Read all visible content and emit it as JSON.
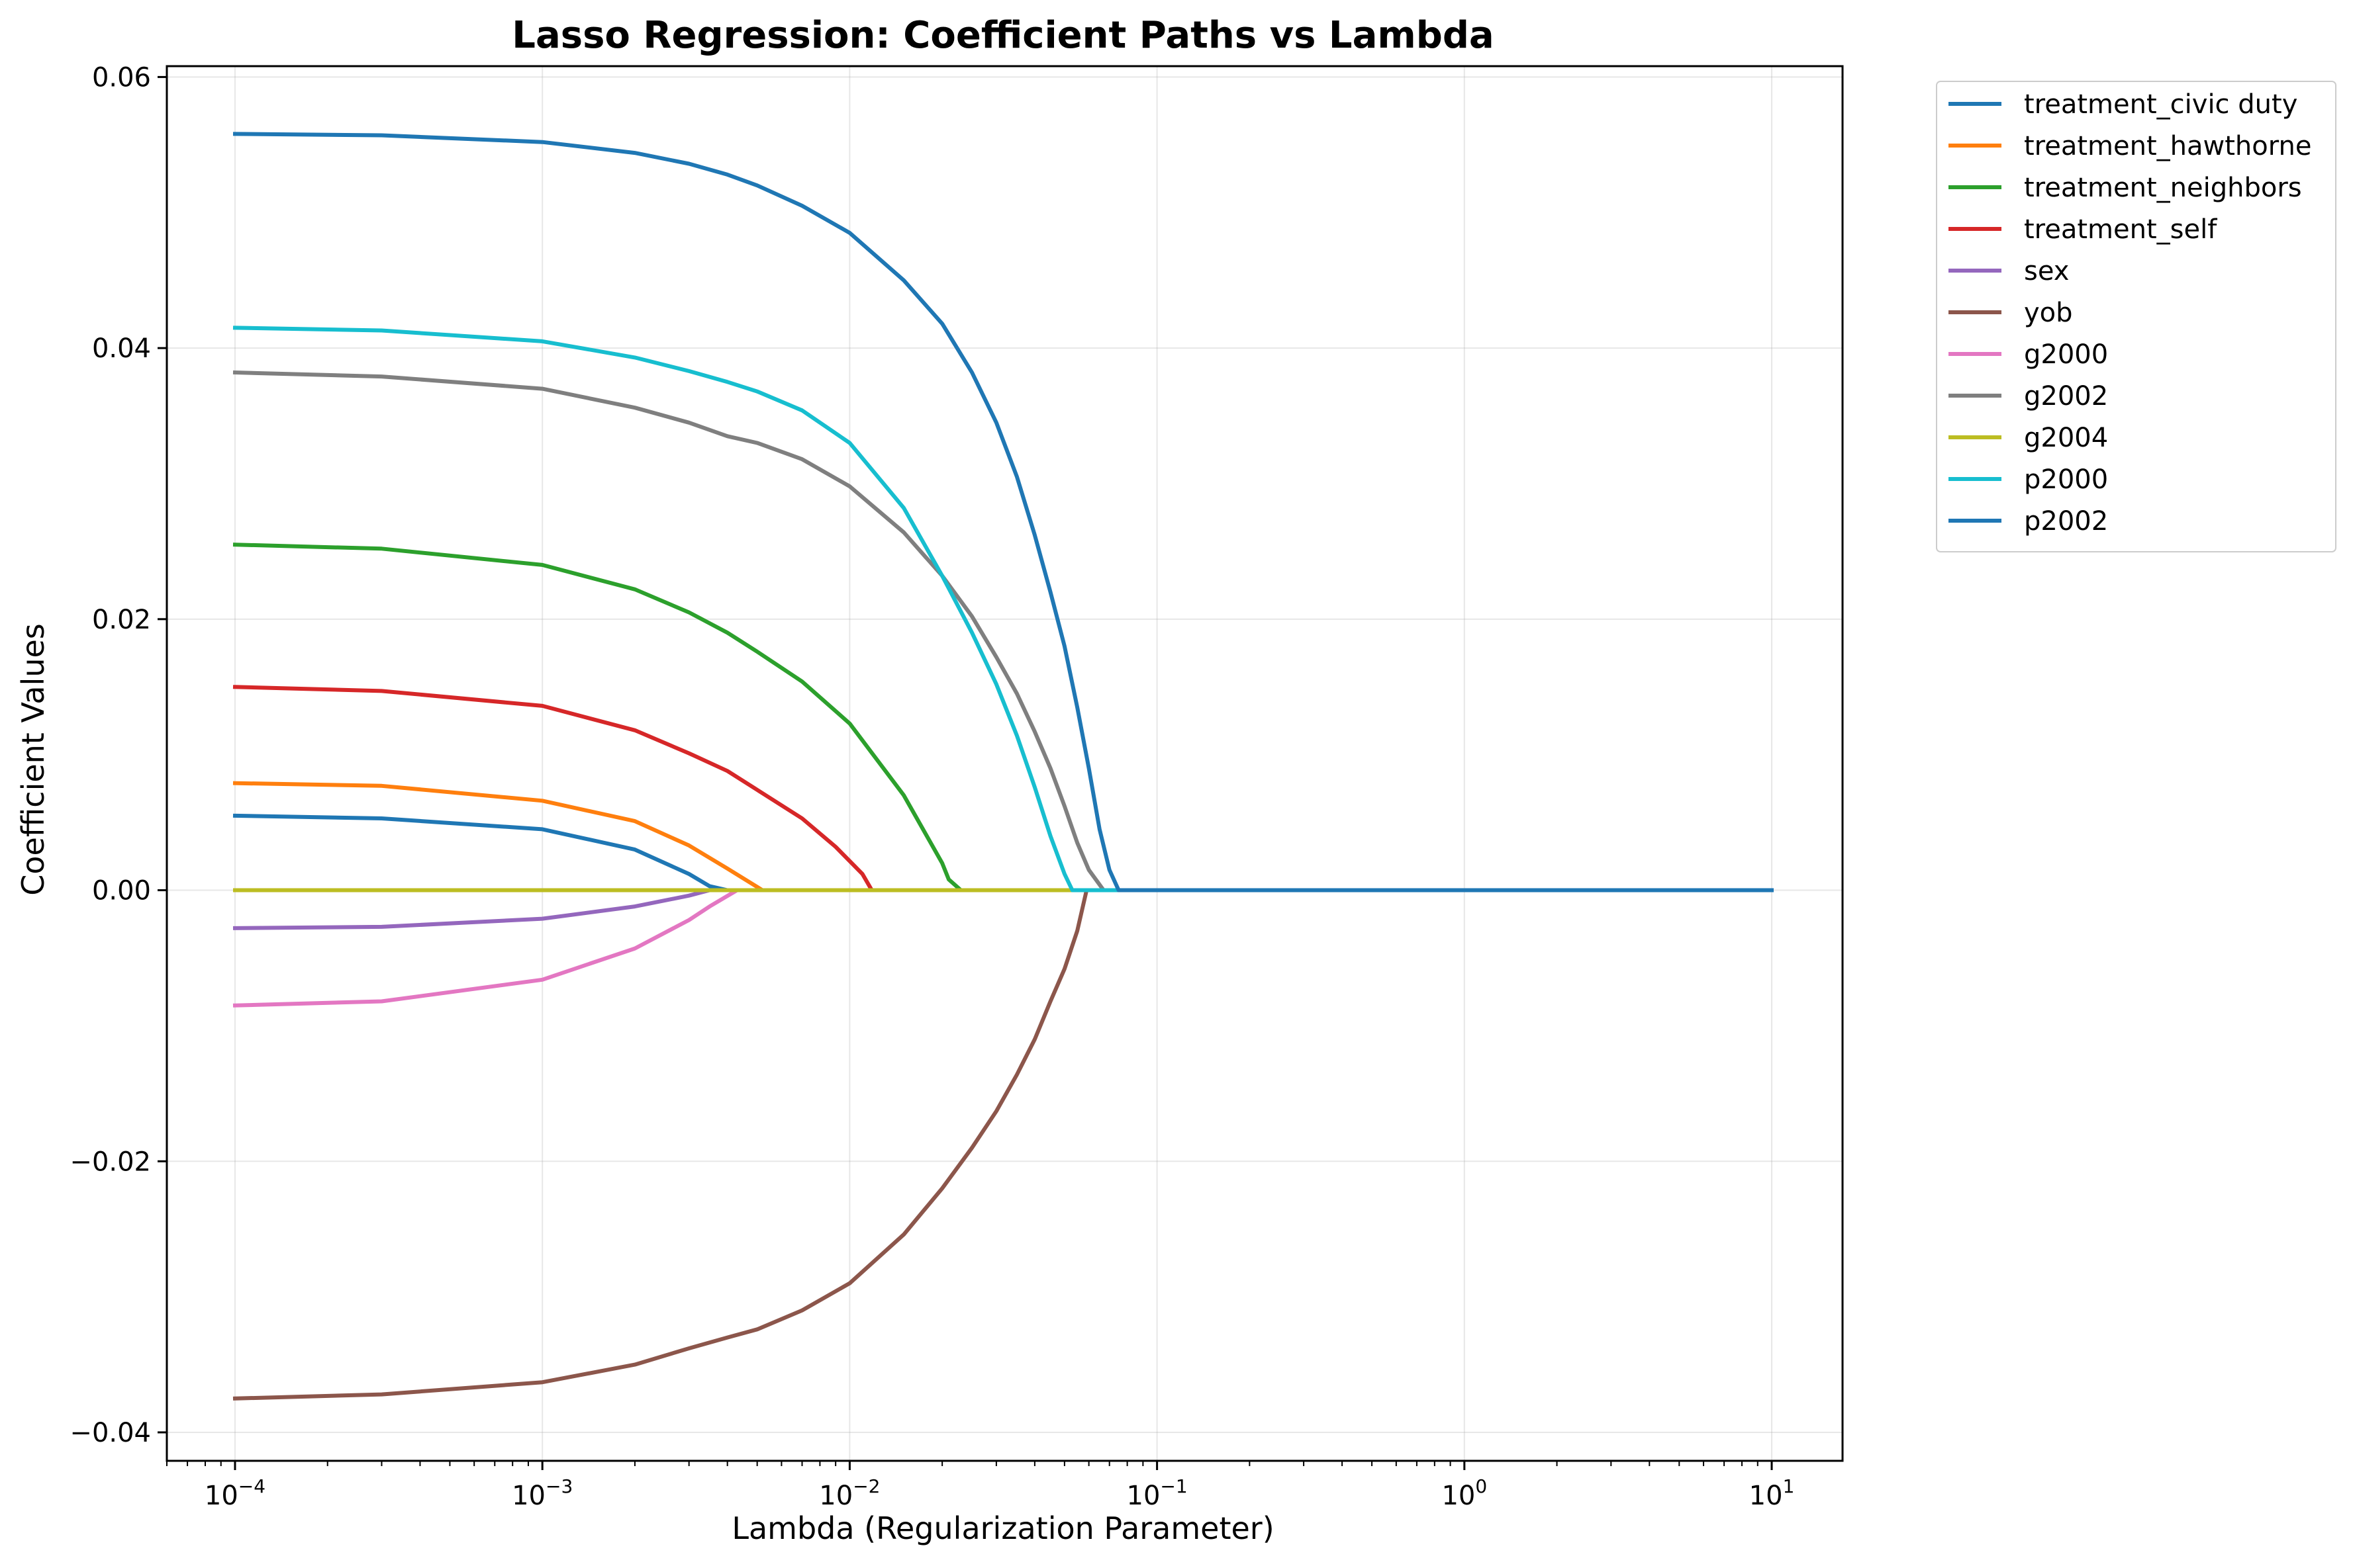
{
  "chart_data": {
    "type": "line",
    "title": "Lasso Regression: Coefficient Paths vs Lambda",
    "xlabel": "Lambda (Regularization Parameter)",
    "ylabel": "Coefficient Values",
    "xscale": "log",
    "xlim": [
      6e-05,
      17
    ],
    "ylim": [
      -0.0421,
      0.0608
    ],
    "grid": true,
    "legend_position": "outside upper right",
    "x_ticks": [
      {
        "value": 0.0001,
        "base": "10",
        "exp": "−4"
      },
      {
        "value": 0.001,
        "base": "10",
        "exp": "−3"
      },
      {
        "value": 0.01,
        "base": "10",
        "exp": "−2"
      },
      {
        "value": 0.1,
        "base": "10",
        "exp": "−1"
      },
      {
        "value": 1,
        "base": "10",
        "exp": "0"
      },
      {
        "value": 10,
        "base": "10",
        "exp": "1"
      }
    ],
    "y_ticks": [
      {
        "value": 0.06,
        "label": "0.06"
      },
      {
        "value": 0.04,
        "label": "0.04"
      },
      {
        "value": 0.02,
        "label": "0.02"
      },
      {
        "value": 0.0,
        "label": "0.00"
      },
      {
        "value": -0.02,
        "label": "−0.02"
      },
      {
        "value": -0.04,
        "label": "−0.04"
      }
    ],
    "series": [
      {
        "name": "treatment_civic duty",
        "color": "#1f77b4",
        "x": [
          0.0001,
          0.0003,
          0.001,
          0.002,
          0.003,
          0.0035,
          0.004,
          10
        ],
        "y": [
          0.0055,
          0.0053,
          0.0045,
          0.003,
          0.0012,
          0.0003,
          0.0,
          0.0
        ]
      },
      {
        "name": "treatment_hawthorne",
        "color": "#ff7f0e",
        "x": [
          0.0001,
          0.0003,
          0.001,
          0.002,
          0.003,
          0.004,
          0.0052,
          10
        ],
        "y": [
          0.0079,
          0.0077,
          0.0066,
          0.0051,
          0.0033,
          0.0016,
          0.0,
          0.0
        ]
      },
      {
        "name": "treatment_neighbors",
        "color": "#2ca02c",
        "x": [
          0.0001,
          0.0003,
          0.001,
          0.002,
          0.003,
          0.004,
          0.005,
          0.007,
          0.01,
          0.015,
          0.02,
          0.021,
          0.023,
          10
        ],
        "y": [
          0.0255,
          0.0252,
          0.024,
          0.0222,
          0.0205,
          0.019,
          0.0176,
          0.0154,
          0.0123,
          0.007,
          0.002,
          0.0008,
          0.0,
          0.0
        ]
      },
      {
        "name": "treatment_self",
        "color": "#d62728",
        "x": [
          0.0001,
          0.0003,
          0.001,
          0.002,
          0.003,
          0.004,
          0.005,
          0.007,
          0.009,
          0.011,
          0.0118,
          10
        ],
        "y": [
          0.015,
          0.0147,
          0.0136,
          0.0118,
          0.0101,
          0.0088,
          0.0074,
          0.0053,
          0.0032,
          0.0012,
          0.0,
          0.0
        ]
      },
      {
        "name": "sex",
        "color": "#9467bd",
        "x": [
          0.0001,
          0.0003,
          0.001,
          0.002,
          0.003,
          0.0035,
          10
        ],
        "y": [
          -0.0028,
          -0.0027,
          -0.0021,
          -0.0012,
          -0.0004,
          0.0,
          0.0
        ]
      },
      {
        "name": "yob",
        "color": "#8c564b",
        "x": [
          0.0001,
          0.0003,
          0.001,
          0.002,
          0.003,
          0.004,
          0.005,
          0.007,
          0.01,
          0.015,
          0.02,
          0.025,
          0.03,
          0.035,
          0.04,
          0.045,
          0.05,
          0.055,
          0.059,
          10
        ],
        "y": [
          -0.0375,
          -0.0372,
          -0.0363,
          -0.035,
          -0.0338,
          -0.033,
          -0.0324,
          -0.031,
          -0.029,
          -0.0254,
          -0.022,
          -0.019,
          -0.0163,
          -0.0136,
          -0.011,
          -0.0082,
          -0.0058,
          -0.003,
          0.0,
          0.0
        ]
      },
      {
        "name": "g2000",
        "color": "#e377c2",
        "x": [
          0.0001,
          0.0003,
          0.001,
          0.002,
          0.003,
          0.0035,
          0.0043,
          10
        ],
        "y": [
          -0.0085,
          -0.0082,
          -0.0066,
          -0.0043,
          -0.0022,
          -0.0012,
          0.0,
          0.0
        ]
      },
      {
        "name": "g2002",
        "color": "#7f7f7f",
        "x": [
          0.0001,
          0.0003,
          0.001,
          0.002,
          0.003,
          0.004,
          0.005,
          0.007,
          0.01,
          0.015,
          0.02,
          0.025,
          0.03,
          0.035,
          0.04,
          0.045,
          0.05,
          0.055,
          0.06,
          0.067,
          10
        ],
        "y": [
          0.0382,
          0.0379,
          0.037,
          0.0356,
          0.0345,
          0.0335,
          0.033,
          0.0318,
          0.0298,
          0.0264,
          0.0232,
          0.0202,
          0.0172,
          0.0145,
          0.0117,
          0.009,
          0.0062,
          0.0035,
          0.0015,
          0.0,
          0.0
        ]
      },
      {
        "name": "g2004",
        "color": "#bcbd22",
        "x": [
          0.0001,
          10
        ],
        "y": [
          0.0,
          0.0
        ]
      },
      {
        "name": "p2000",
        "color": "#17becf",
        "x": [
          0.0001,
          0.0003,
          0.001,
          0.002,
          0.003,
          0.004,
          0.005,
          0.007,
          0.01,
          0.015,
          0.02,
          0.025,
          0.03,
          0.035,
          0.04,
          0.045,
          0.05,
          0.053,
          10
        ],
        "y": [
          0.0415,
          0.0413,
          0.0405,
          0.0393,
          0.0383,
          0.0375,
          0.0368,
          0.0354,
          0.033,
          0.0282,
          0.0232,
          0.019,
          0.0152,
          0.0114,
          0.0076,
          0.004,
          0.0012,
          0.0,
          0.0
        ]
      },
      {
        "name": "p2002",
        "color": "#1f77b4",
        "x": [
          0.0001,
          0.0003,
          0.001,
          0.002,
          0.003,
          0.004,
          0.005,
          0.007,
          0.01,
          0.015,
          0.02,
          0.025,
          0.03,
          0.035,
          0.04,
          0.045,
          0.05,
          0.055,
          0.06,
          0.065,
          0.07,
          0.075,
          10
        ],
        "y": [
          0.0558,
          0.0557,
          0.0552,
          0.0544,
          0.0536,
          0.0528,
          0.052,
          0.0505,
          0.0485,
          0.045,
          0.0418,
          0.0382,
          0.0345,
          0.0305,
          0.0262,
          0.022,
          0.018,
          0.0135,
          0.009,
          0.0045,
          0.0015,
          0.0,
          0.0
        ]
      }
    ]
  }
}
